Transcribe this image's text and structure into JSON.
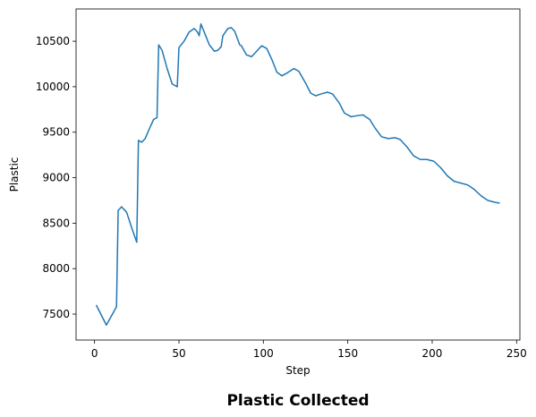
{
  "chart_data": {
    "type": "line",
    "title": "Plastic Collected",
    "xlabel": "Step",
    "ylabel": "Plastic",
    "x": [
      1,
      7,
      13,
      14,
      16,
      19,
      22,
      25,
      26,
      28,
      30,
      33,
      35,
      37,
      38,
      40,
      43,
      46,
      49,
      50,
      53,
      56,
      59,
      61,
      62,
      63,
      65,
      68,
      71,
      73,
      75,
      76,
      79,
      81,
      83,
      86,
      87,
      90,
      93,
      96,
      99,
      102,
      105,
      108,
      111,
      114,
      118,
      121,
      125,
      128,
      131,
      134,
      138,
      141,
      145,
      148,
      152,
      155,
      159,
      163,
      166,
      170,
      174,
      178,
      181,
      185,
      189,
      193,
      197,
      201,
      205,
      209,
      213,
      217,
      221,
      225,
      229,
      233,
      237,
      240
    ],
    "series": [
      {
        "name": "Plastic",
        "color": "#1f77b4",
        "values": [
          7600,
          7380,
          7580,
          8640,
          8680,
          8620,
          8450,
          8290,
          9410,
          9390,
          9430,
          9560,
          9640,
          9660,
          10460,
          10400,
          10200,
          10030,
          10000,
          10430,
          10500,
          10600,
          10640,
          10600,
          10560,
          10690,
          10600,
          10460,
          10390,
          10400,
          10440,
          10560,
          10640,
          10650,
          10610,
          10460,
          10450,
          10350,
          10330,
          10390,
          10450,
          10420,
          10300,
          10160,
          10120,
          10150,
          10200,
          10170,
          10040,
          9930,
          9900,
          9920,
          9940,
          9920,
          9820,
          9710,
          9670,
          9680,
          9690,
          9640,
          9550,
          9450,
          9430,
          9440,
          9420,
          9340,
          9240,
          9200,
          9200,
          9180,
          9110,
          9020,
          8960,
          8940,
          8920,
          8870,
          8800,
          8750,
          8730,
          8720
        ]
      }
    ],
    "xlim": [
      -10.95,
      251.95
    ],
    "ylim": [
      7215,
      10855
    ],
    "xticks": [
      0,
      50,
      100,
      150,
      200,
      250
    ],
    "yticks": [
      7500,
      8000,
      8500,
      9000,
      9500,
      10000,
      10500
    ],
    "grid": false
  }
}
